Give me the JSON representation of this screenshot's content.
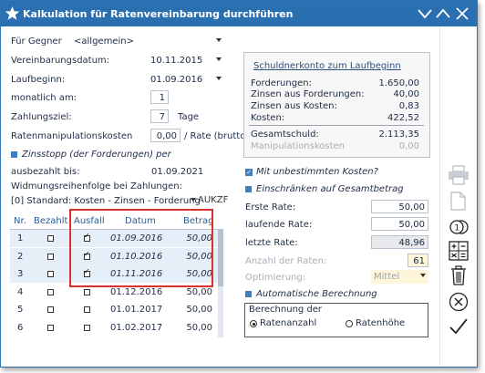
{
  "window": {
    "title": "Kalkulation für Ratenvereinbarung durchführen"
  },
  "left": {
    "gegner_label": "Für Gegner",
    "gegner_value": "<allgemein>",
    "vdatum_label": "Vereinbarungsdatum:",
    "vdatum_value": "10.11.2015",
    "laufbeginn_label": "Laufbeginn:",
    "laufbeginn_value": "01.09.2016",
    "monatlich_label": "monatlich am:",
    "monatlich_value": "1",
    "zahlungsziel_label": "Zahlungsziel:",
    "zahlungsziel_value": "7",
    "tage_label": "Tage",
    "manip_label": "Ratenmanipulationskosten",
    "manip_value": "0,00",
    "manip_unit": "/ Rate (brutto)",
    "zinsstopp_label": "Zinsstopp (der Forderungen) per",
    "ausbezahlt_label": "ausbezahlt bis:",
    "ausbezahlt_value": "01.09.2021",
    "widmung_label": "Widmungsreihenfolge bei Zahlungen:",
    "widmung_value": "[0] Standard: Kosten - Zinsen - Forderung",
    "aukzf": "AUKZF"
  },
  "table": {
    "headers": [
      "Nr.",
      "Bezahlt",
      "Ausfall",
      "Datum",
      "Betrag"
    ],
    "rows": [
      {
        "nr": "1",
        "datum": "01.09.2016",
        "betrag": "50,00"
      },
      {
        "nr": "2",
        "datum": "01.10.2016",
        "betrag": "50,00"
      },
      {
        "nr": "3",
        "datum": "01.11.2016",
        "betrag": "50,00"
      },
      {
        "nr": "4",
        "datum": "01.12.2016",
        "betrag": "50,00"
      },
      {
        "nr": "5",
        "datum": "01.01.2017",
        "betrag": "50,00"
      },
      {
        "nr": "6",
        "datum": "01.02.2017",
        "betrag": "50,00"
      }
    ],
    "ausfall_checked": [
      true,
      true,
      true,
      false,
      false,
      false
    ]
  },
  "summary": {
    "title": "Schuldnerkonto zum Laufbeginn",
    "forderungen_label": "Forderungen:",
    "forderungen_value": "1.650,00",
    "zinsen_ford_label": "Zinsen aus Forderungen:",
    "zinsen_ford_value": "40,00",
    "zinsen_kosten_label": "Zinsen aus Kosten:",
    "zinsen_kosten_value": "0,83",
    "kosten_label": "Kosten:",
    "kosten_value": "422,52",
    "gesamt_label": "Gesamtschuld:",
    "gesamt_value": "2.113,35",
    "manip_label": "Manipulationskosten",
    "manip_value": "0,00"
  },
  "right": {
    "unbestimmt_label": "Mit unbestimmten Kosten?",
    "einschraenken_label": "Einschränken auf Gesamtbetrag",
    "erste_rate_label": "Erste Rate:",
    "erste_rate_value": "50,00",
    "laufende_rate_label": "laufende Rate:",
    "laufende_rate_value": "50,00",
    "letzte_rate_label": "letzte Rate:",
    "letzte_rate_value": "48,96",
    "anzahl_label": "Anzahl der Raten:",
    "anzahl_value": "61",
    "optimierung_label": "Optimierung:",
    "optimierung_value": "Mittel",
    "auto_label": "Automatische Berechnung",
    "berechnung_label": "Berechnung der",
    "radio_anzahl": "Ratenanzahl",
    "radio_hoehe": "Ratenhöhe"
  },
  "colors": {
    "titlebar": "#2a6fb0",
    "highlight": "#d93030",
    "accent": "#3f7fc0"
  }
}
